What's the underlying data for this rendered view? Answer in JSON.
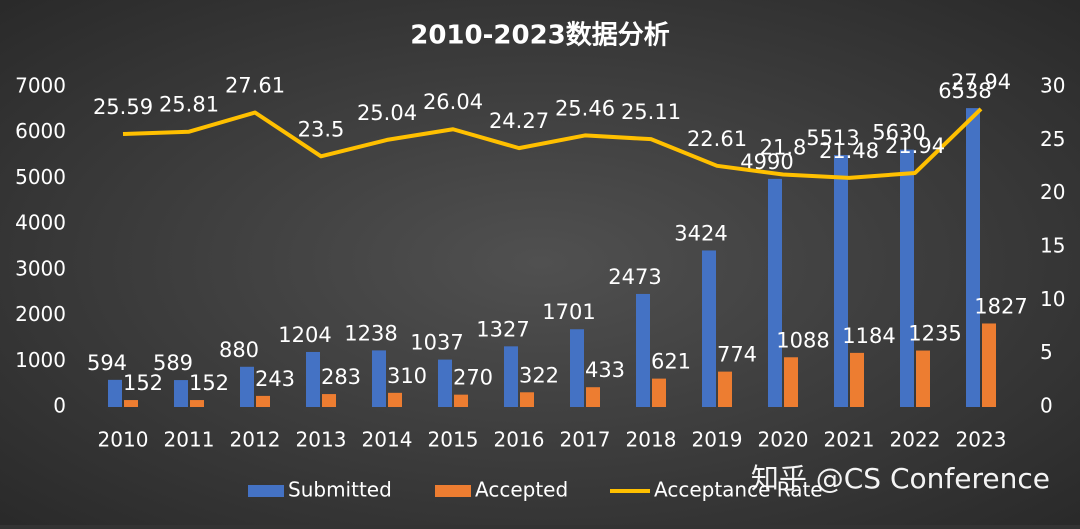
{
  "chart_data": {
    "type": "bar_line",
    "title": "2010-2023数据分析",
    "categories": [
      "2010",
      "2011",
      "2012",
      "2013",
      "2014",
      "2015",
      "2016",
      "2017",
      "2018",
      "2019",
      "2020",
      "2021",
      "2022",
      "2023"
    ],
    "series": [
      {
        "name": "Submitted",
        "color": "#4472c4",
        "values": [
          594,
          589,
          880,
          1204,
          1238,
          1037,
          1327,
          1701,
          2473,
          3424,
          4990,
          5513,
          5630,
          6538
        ]
      },
      {
        "name": "Accepted",
        "color": "#ed7d31",
        "values": [
          152,
          152,
          243,
          283,
          310,
          270,
          322,
          433,
          621,
          774,
          1088,
          1184,
          1235,
          1827
        ]
      },
      {
        "name": "Acceptance Rate",
        "color": "#ffc000",
        "axis": "y2",
        "values": [
          25.59,
          25.81,
          27.61,
          23.5,
          25.04,
          26.04,
          24.27,
          25.46,
          25.11,
          22.61,
          21.8,
          21.48,
          21.94,
          27.94
        ]
      }
    ],
    "ylim": [
      0,
      7000
    ],
    "yticks": [
      0,
      1000,
      2000,
      3000,
      4000,
      5000,
      6000,
      7000
    ],
    "y2lim": [
      0,
      30
    ],
    "y2ticks": [
      0,
      5,
      10,
      15,
      20,
      25,
      30
    ],
    "legend": "bottom",
    "watermark": "知乎 @CS Conference"
  }
}
